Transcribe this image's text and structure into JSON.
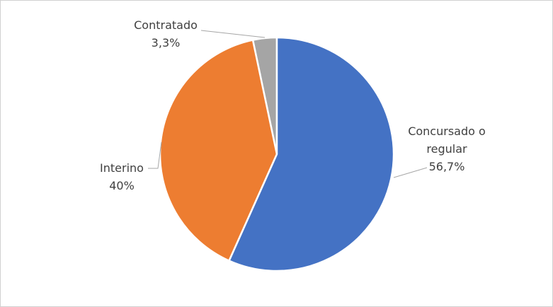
{
  "chart_data": {
    "type": "pie",
    "categories": [
      "Concursado o regular",
      "Interino",
      "Contratado"
    ],
    "values": [
      56.7,
      40,
      3.3
    ],
    "value_labels": [
      "56,7%",
      "40%",
      "3,3%"
    ],
    "colors": [
      "#4472c4",
      "#ed7d31",
      "#a5a5a5"
    ]
  }
}
